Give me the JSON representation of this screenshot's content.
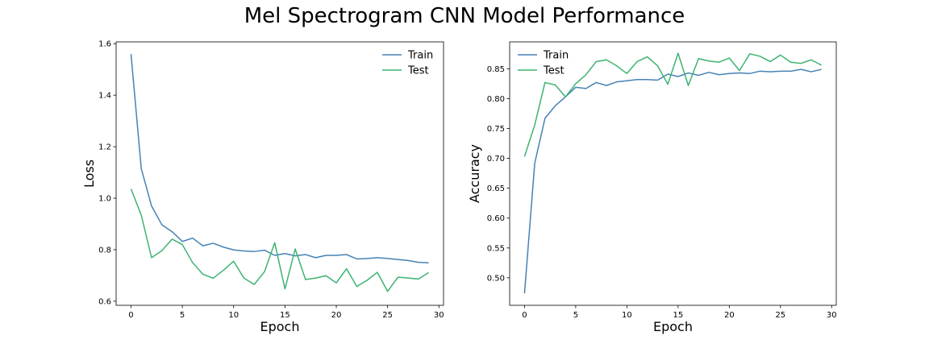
{
  "figure": {
    "title": "Mel Spectrogram CNN Model Performance"
  },
  "chart_data": [
    {
      "type": "line",
      "xlabel": "Epoch",
      "ylabel": "Loss",
      "xlim": [
        -1.45,
        30.45
      ],
      "ylim": [
        0.584,
        1.607
      ],
      "xticks": [
        0,
        5,
        10,
        15,
        20,
        25,
        30
      ],
      "yticks": [
        0.6,
        0.8,
        1.0,
        1.2,
        1.4,
        1.6
      ],
      "ytick_format": 1,
      "grid": false,
      "legend": "top-right",
      "x": [
        0,
        1,
        2,
        3,
        4,
        5,
        6,
        7,
        8,
        9,
        10,
        11,
        12,
        13,
        14,
        15,
        16,
        17,
        18,
        19,
        20,
        21,
        22,
        23,
        24,
        25,
        26,
        27,
        28,
        29
      ],
      "series": [
        {
          "name": "Train",
          "color": "#4682b4",
          "values": [
            1.56,
            1.115,
            0.97,
            0.897,
            0.87,
            0.832,
            0.845,
            0.815,
            0.825,
            0.81,
            0.799,
            0.795,
            0.793,
            0.798,
            0.778,
            0.785,
            0.776,
            0.781,
            0.769,
            0.778,
            0.778,
            0.781,
            0.764,
            0.766,
            0.769,
            0.766,
            0.762,
            0.758,
            0.751,
            0.749
          ]
        },
        {
          "name": "Test",
          "color": "#3cb371",
          "values": [
            1.036,
            0.934,
            0.769,
            0.796,
            0.841,
            0.82,
            0.75,
            0.705,
            0.689,
            0.72,
            0.755,
            0.69,
            0.665,
            0.714,
            0.827,
            0.648,
            0.803,
            0.684,
            0.69,
            0.699,
            0.671,
            0.726,
            0.657,
            0.681,
            0.712,
            0.638,
            0.693,
            0.69,
            0.686,
            0.711
          ]
        }
      ]
    },
    {
      "type": "line",
      "xlabel": "Epoch",
      "ylabel": "Accuracy",
      "xlim": [
        -1.45,
        30.45
      ],
      "ylim": [
        0.454,
        0.895
      ],
      "xticks": [
        0,
        5,
        10,
        15,
        20,
        25,
        30
      ],
      "yticks": [
        0.5,
        0.55,
        0.6,
        0.65,
        0.7,
        0.75,
        0.8,
        0.85
      ],
      "ytick_format": 2,
      "grid": false,
      "legend": "top-left",
      "x": [
        0,
        1,
        2,
        3,
        4,
        5,
        6,
        7,
        8,
        9,
        10,
        11,
        12,
        13,
        14,
        15,
        16,
        17,
        18,
        19,
        20,
        21,
        22,
        23,
        24,
        25,
        26,
        27,
        28,
        29
      ],
      "series": [
        {
          "name": "Train",
          "color": "#4682b4",
          "values": [
            0.474,
            0.692,
            0.767,
            0.788,
            0.803,
            0.819,
            0.817,
            0.827,
            0.822,
            0.828,
            0.83,
            0.832,
            0.832,
            0.831,
            0.841,
            0.837,
            0.843,
            0.839,
            0.844,
            0.84,
            0.842,
            0.843,
            0.842,
            0.846,
            0.845,
            0.846,
            0.846,
            0.849,
            0.845,
            0.849
          ]
        },
        {
          "name": "Test",
          "color": "#3cb371",
          "values": [
            0.703,
            0.756,
            0.827,
            0.823,
            0.803,
            0.825,
            0.84,
            0.862,
            0.865,
            0.855,
            0.842,
            0.862,
            0.87,
            0.855,
            0.824,
            0.876,
            0.822,
            0.867,
            0.863,
            0.861,
            0.868,
            0.847,
            0.875,
            0.871,
            0.862,
            0.873,
            0.861,
            0.859,
            0.865,
            0.856
          ]
        }
      ]
    }
  ]
}
